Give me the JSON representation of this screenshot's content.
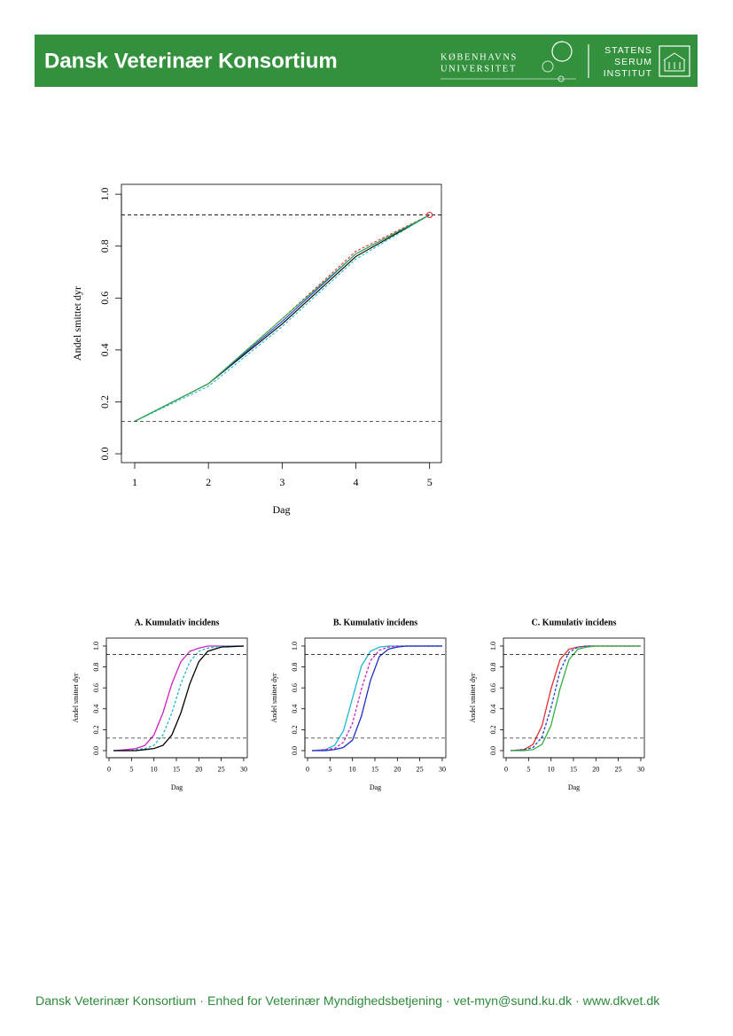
{
  "header": {
    "title": "Dansk Veterinær Konsortium",
    "university": [
      "KØBENHAVNS",
      "UNIVERSITET"
    ],
    "institute": [
      "STATENS",
      "SERUM",
      "INSTITUT"
    ]
  },
  "chart_data": [
    {
      "type": "line",
      "xlabel": "Dag",
      "ylabel": "Andel smittet dyr",
      "x": [
        1,
        2,
        3,
        4,
        5
      ],
      "series": [
        {
          "color": "#000000",
          "values": [
            0.125,
            0.27,
            0.5,
            0.76,
            0.92
          ]
        },
        {
          "color": "#e0303a",
          "values": [
            0.125,
            0.27,
            0.52,
            0.78,
            0.92
          ]
        },
        {
          "color": "#2040d0",
          "values": [
            0.125,
            0.27,
            0.51,
            0.77,
            0.92
          ]
        },
        {
          "color": "#20c0d0",
          "values": [
            0.125,
            0.26,
            0.49,
            0.75,
            0.92
          ]
        },
        {
          "color": "#30b040",
          "values": [
            0.125,
            0.27,
            0.52,
            0.77,
            0.92
          ]
        }
      ],
      "hlines": [
        0.92,
        0.125
      ],
      "highlight": {
        "x": 5,
        "y": 0.92,
        "color": "#e0303a"
      },
      "xlim": [
        0.82,
        5.16
      ],
      "ylim": [
        -0.034,
        1.038
      ],
      "xticks": [
        1,
        2,
        3,
        4,
        5
      ],
      "yticks": [
        {
          "value": 0,
          "label": "0.0"
        },
        {
          "value": 0.2,
          "label": "0.2"
        },
        {
          "value": 0.4,
          "label": "0.4"
        },
        {
          "value": 0.6,
          "label": "0.6"
        },
        {
          "value": 0.8,
          "label": "0.8"
        },
        {
          "value": 1,
          "label": "1.0"
        }
      ]
    },
    {
      "type": "line",
      "title": "A. Kumulativ incidens",
      "xlabel": "Dag",
      "ylabel": "Andel smittet dyr",
      "x": [
        1,
        4,
        6,
        8,
        10,
        12,
        14,
        16,
        18,
        20,
        22,
        25,
        30
      ],
      "series": [
        {
          "color": "#d020c0",
          "values": [
            0,
            0.01,
            0.02,
            0.05,
            0.15,
            0.36,
            0.64,
            0.85,
            0.95,
            0.98,
            1,
            1,
            1
          ]
        },
        {
          "color": "#20b8d0",
          "values": [
            0,
            0,
            0.01,
            0.02,
            0.05,
            0.15,
            0.36,
            0.64,
            0.85,
            0.95,
            0.98,
            1,
            1
          ]
        },
        {
          "color": "#000000",
          "values": [
            0,
            0,
            0,
            0.01,
            0.02,
            0.05,
            0.15,
            0.36,
            0.64,
            0.85,
            0.95,
            0.99,
            1
          ]
        }
      ],
      "hlines": [
        0.92,
        0.12
      ],
      "xlim": [
        -0.6,
        30.8
      ],
      "ylim": [
        -0.068,
        1.076
      ],
      "xticks": [
        0,
        5,
        10,
        15,
        20,
        25,
        30
      ],
      "yticks": [
        {
          "value": 0,
          "label": "0.0"
        },
        {
          "value": 0.2,
          "label": "0.2"
        },
        {
          "value": 0.4,
          "label": "0.4"
        },
        {
          "value": 0.6,
          "label": "0.6"
        },
        {
          "value": 0.8,
          "label": "0.8"
        },
        {
          "value": 1,
          "label": "1.0"
        }
      ]
    },
    {
      "type": "line",
      "title": "B. Kumulativ incidens",
      "xlabel": "Dag",
      "ylabel": "Andel smittet dyr",
      "x": [
        1,
        4,
        6,
        8,
        10,
        12,
        14,
        16,
        18,
        20,
        22,
        25,
        30
      ],
      "series": [
        {
          "color": "#20b8d0",
          "values": [
            0,
            0.01,
            0.05,
            0.19,
            0.5,
            0.81,
            0.95,
            0.99,
            1,
            1,
            1,
            1,
            1
          ]
        },
        {
          "color": "#d020c0",
          "values": [
            0,
            0.01,
            0.02,
            0.08,
            0.26,
            0.59,
            0.86,
            0.96,
            0.99,
            1,
            1,
            1,
            1
          ]
        },
        {
          "color": "#2030c0",
          "values": [
            0,
            0,
            0.01,
            0.03,
            0.1,
            0.33,
            0.67,
            0.9,
            0.97,
            0.99,
            1,
            1,
            1
          ]
        }
      ],
      "hlines": [
        0.92,
        0.12
      ],
      "xlim": [
        -0.6,
        30.8
      ],
      "ylim": [
        -0.068,
        1.076
      ],
      "xticks": [
        0,
        5,
        10,
        15,
        20,
        25,
        30
      ],
      "yticks": [
        {
          "value": 0,
          "label": "0.0"
        },
        {
          "value": 0.2,
          "label": "0.2"
        },
        {
          "value": 0.4,
          "label": "0.4"
        },
        {
          "value": 0.6,
          "label": "0.6"
        },
        {
          "value": 0.8,
          "label": "0.8"
        },
        {
          "value": 1,
          "label": "1.0"
        }
      ]
    },
    {
      "type": "line",
      "title": "C. Kumulativ incidens",
      "xlabel": "Dag",
      "ylabel": "Andel smittet dyr",
      "x": [
        1,
        4,
        6,
        8,
        10,
        12,
        14,
        16,
        18,
        20,
        22,
        25,
        30
      ],
      "series": [
        {
          "color": "#e03030",
          "values": [
            0,
            0.01,
            0.06,
            0.24,
            0.59,
            0.87,
            0.97,
            0.99,
            1,
            1,
            1,
            1,
            1
          ]
        },
        {
          "color": "#2040d0",
          "values": [
            0,
            0.01,
            0.03,
            0.13,
            0.41,
            0.76,
            0.94,
            0.99,
            1,
            1,
            1,
            1,
            1
          ]
        },
        {
          "color": "#30b040",
          "values": [
            0,
            0,
            0.01,
            0.06,
            0.24,
            0.59,
            0.87,
            0.97,
            0.99,
            1,
            1,
            1,
            1
          ]
        }
      ],
      "hlines": [
        0.92,
        0.12
      ],
      "xlim": [
        -0.6,
        30.8
      ],
      "ylim": [
        -0.068,
        1.076
      ],
      "xticks": [
        0,
        5,
        10,
        15,
        20,
        25,
        30
      ],
      "yticks": [
        {
          "value": 0,
          "label": "0.0"
        },
        {
          "value": 0.2,
          "label": "0.2"
        },
        {
          "value": 0.4,
          "label": "0.4"
        },
        {
          "value": 0.6,
          "label": "0.6"
        },
        {
          "value": 0.8,
          "label": "0.8"
        },
        {
          "value": 1,
          "label": "1.0"
        }
      ]
    }
  ],
  "footer": {
    "text": "Dansk Veterinær Konsortium · Enhed for Veterinær Myndighedsbetjening · vet-myn@sund.ku.dk · www.dkvet.dk"
  }
}
